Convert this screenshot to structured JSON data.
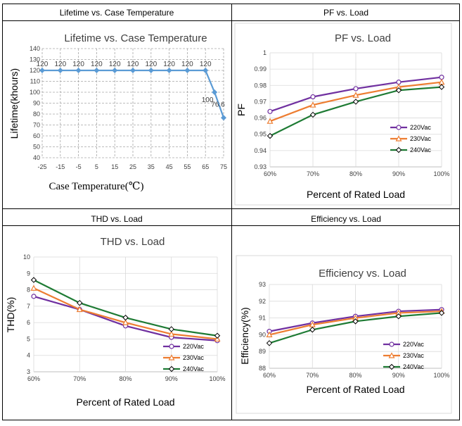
{
  "cells": [
    {
      "caption": "Lifetime vs. Case Temperature"
    },
    {
      "caption": "PF vs. Load"
    },
    {
      "caption": "THD vs. Load"
    },
    {
      "caption": "Efficiency vs. Load"
    }
  ],
  "chart_data": [
    {
      "type": "line",
      "title": "Lifetime vs. Case Temperature",
      "xlabel": "Case Temperature(℃)",
      "ylabel": "Lifetime(khours)",
      "xticks": [
        "-25",
        "-15",
        "-5",
        "5",
        "15",
        "25",
        "35",
        "45",
        "55",
        "65",
        "75"
      ],
      "yticks": [
        "40",
        "50",
        "60",
        "70",
        "80",
        "90",
        "100",
        "110",
        "120",
        "130",
        "140"
      ],
      "xlim": [
        -25,
        75
      ],
      "ylim": [
        40,
        140
      ],
      "grid": true,
      "series": [
        {
          "name": "Lifetime",
          "color": "#5b9bd5",
          "x": [
            -25,
            -15,
            -5,
            5,
            15,
            25,
            35,
            45,
            55,
            65,
            70,
            75
          ],
          "y": [
            120,
            120,
            120,
            120,
            120,
            120,
            120,
            120,
            120,
            120,
            100,
            76.6
          ],
          "labels": [
            "120",
            "120",
            "120",
            "120",
            "120",
            "120",
            "120",
            "120",
            "120",
            "120",
            "100",
            "76.6"
          ]
        }
      ]
    },
    {
      "type": "line",
      "title": "PF vs. Load",
      "xlabel": "Percent of Rated Load",
      "ylabel": "PF",
      "categories": [
        "60%",
        "70%",
        "80%",
        "90%",
        "100%"
      ],
      "yticks": [
        "0.93",
        "0.94",
        "0.95",
        "0.96",
        "0.97",
        "0.98",
        "0.99",
        "1"
      ],
      "ylim": [
        0.93,
        1.0
      ],
      "legend": "bottom-right",
      "series": [
        {
          "name": "220Vac",
          "color": "#7030a0",
          "marker": "circle",
          "values": [
            0.964,
            0.973,
            0.978,
            0.982,
            0.985
          ]
        },
        {
          "name": "230Vac",
          "color": "#ed7d31",
          "marker": "triangle",
          "values": [
            0.958,
            0.968,
            0.974,
            0.979,
            0.982
          ]
        },
        {
          "name": "240Vac",
          "color": "#1e7b34",
          "marker": "diamond",
          "values": [
            0.949,
            0.962,
            0.97,
            0.977,
            0.979
          ]
        }
      ]
    },
    {
      "type": "line",
      "title": "THD vs. Load",
      "xlabel": "Percent of Rated Load",
      "ylabel": "THD(%)",
      "categories": [
        "60%",
        "70%",
        "80%",
        "90%",
        "100%"
      ],
      "yticks": [
        "3",
        "4",
        "5",
        "6",
        "7",
        "8",
        "9",
        "10"
      ],
      "ylim": [
        3,
        10
      ],
      "legend": "bottom-right",
      "series": [
        {
          "name": "220Vac",
          "color": "#7030a0",
          "marker": "circle",
          "values": [
            7.6,
            6.8,
            5.8,
            5.1,
            4.9
          ]
        },
        {
          "name": "230Vac",
          "color": "#ed7d31",
          "marker": "triangle",
          "values": [
            8.1,
            6.8,
            6.0,
            5.3,
            5.0
          ]
        },
        {
          "name": "240Vac",
          "color": "#1e7b34",
          "marker": "diamond",
          "values": [
            8.6,
            7.2,
            6.3,
            5.6,
            5.2
          ]
        }
      ]
    },
    {
      "type": "line",
      "title": "Efficiency vs. Load",
      "xlabel": "Percent of Rated Load",
      "ylabel": "Efficiency(%)",
      "categories": [
        "60%",
        "70%",
        "80%",
        "90%",
        "100%"
      ],
      "yticks": [
        "88",
        "89",
        "90",
        "91",
        "92",
        "93"
      ],
      "ylim": [
        88,
        93
      ],
      "legend": "bottom-right",
      "series": [
        {
          "name": "220Vac",
          "color": "#7030a0",
          "marker": "circle",
          "values": [
            90.2,
            90.7,
            91.1,
            91.4,
            91.5
          ]
        },
        {
          "name": "230Vac",
          "color": "#ed7d31",
          "marker": "triangle",
          "values": [
            90.0,
            90.6,
            91.0,
            91.3,
            91.4
          ]
        },
        {
          "name": "240Vac",
          "color": "#1e7b34",
          "marker": "diamond",
          "values": [
            89.5,
            90.3,
            90.8,
            91.1,
            91.3
          ]
        }
      ]
    }
  ]
}
